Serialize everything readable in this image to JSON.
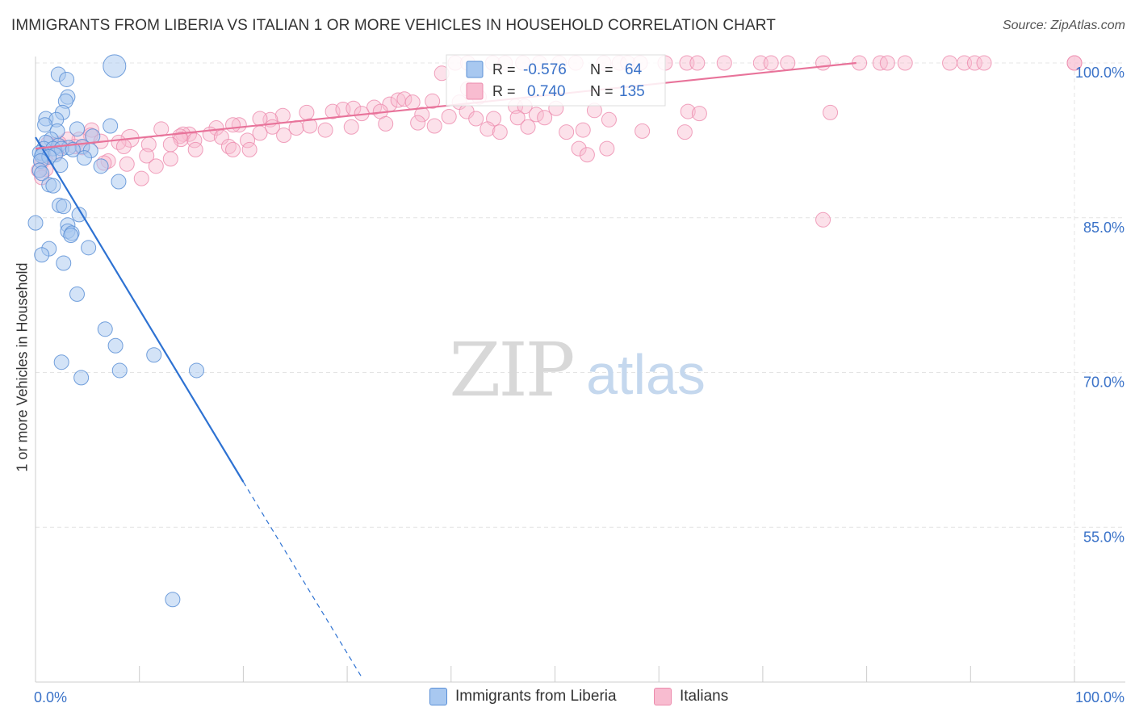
{
  "title": "IMMIGRANTS FROM LIBERIA VS ITALIAN 1 OR MORE VEHICLES IN HOUSEHOLD CORRELATION CHART",
  "source": "Source: ZipAtlas.com",
  "watermark": {
    "zip": "ZIP",
    "atlas": "atlas"
  },
  "colors": {
    "blue_fill": "#a8c8f0",
    "blue_stroke": "#5a8fd6",
    "blue_line": "#2e72d2",
    "pink_fill": "#f8bcd0",
    "pink_stroke": "#ec8aac",
    "pink_line": "#e8739a",
    "axis_text": "#3a72c8",
    "grid": "#e4e4e4"
  },
  "stats": {
    "r_label": "R =",
    "n_label": "N =",
    "rows": [
      {
        "series": "blue",
        "r": "-0.576",
        "n": "64"
      },
      {
        "series": "pink",
        "r": "0.740",
        "n": "135"
      }
    ]
  },
  "legend": [
    {
      "series": "blue",
      "label": "Immigrants from Liberia"
    },
    {
      "series": "pink",
      "label": "Italians"
    }
  ],
  "chart_data": {
    "type": "scatter",
    "title": "IMMIGRANTS FROM LIBERIA VS ITALIAN 1 OR MORE VEHICLES IN HOUSEHOLD CORRELATION CHART",
    "xlabel": "",
    "ylabel": "1 or more Vehicles in Household",
    "xlim": [
      0,
      100
    ],
    "ylim": [
      40,
      100
    ],
    "x_tick_labels": [
      "0.0%",
      "100.0%"
    ],
    "y_ticks": [
      {
        "value": 100,
        "label": "100.0%"
      },
      {
        "value": 85,
        "label": "85.0%"
      },
      {
        "value": 70,
        "label": "70.0%"
      },
      {
        "value": 55,
        "label": "55.0%"
      }
    ],
    "grid": true,
    "legend_position": "bottom",
    "series": [
      {
        "name": "Immigrants from Liberia",
        "color": "blue",
        "trend": {
          "x0": 0,
          "y0": 92.8,
          "x1": 20,
          "y1": 59.4,
          "dash_to_x": 31.5,
          "dash_to_y": 40.3
        },
        "points": [
          [
            7.6,
            99.7
          ],
          [
            2.2,
            98.9
          ],
          [
            3.0,
            98.4
          ],
          [
            3.1,
            96.7
          ],
          [
            2.9,
            96.3
          ],
          [
            2.6,
            95.2
          ],
          [
            1.0,
            94.6
          ],
          [
            2.0,
            94.5
          ],
          [
            0.9,
            94.0
          ],
          [
            7.2,
            93.9
          ],
          [
            4.0,
            93.6
          ],
          [
            2.1,
            93.4
          ],
          [
            5.5,
            92.9
          ],
          [
            1.5,
            92.6
          ],
          [
            1.0,
            92.3
          ],
          [
            2.2,
            92.0
          ],
          [
            4.5,
            91.9
          ],
          [
            3.2,
            91.8
          ],
          [
            0.8,
            91.7
          ],
          [
            1.7,
            91.7
          ],
          [
            2.5,
            91.7
          ],
          [
            3.6,
            91.6
          ],
          [
            5.3,
            91.5
          ],
          [
            0.4,
            91.3
          ],
          [
            0.7,
            91.2
          ],
          [
            1.9,
            91.1
          ],
          [
            0.6,
            91.0
          ],
          [
            1.3,
            90.9
          ],
          [
            4.7,
            90.8
          ],
          [
            0.5,
            90.5
          ],
          [
            2.4,
            90.1
          ],
          [
            6.3,
            90.0
          ],
          [
            0.4,
            89.6
          ],
          [
            0.6,
            89.3
          ],
          [
            8.0,
            88.5
          ],
          [
            1.3,
            88.2
          ],
          [
            1.7,
            88.1
          ],
          [
            2.3,
            86.2
          ],
          [
            2.7,
            86.1
          ],
          [
            4.2,
            85.3
          ],
          [
            0.0,
            84.5
          ],
          [
            3.1,
            84.3
          ],
          [
            3.1,
            83.7
          ],
          [
            3.5,
            83.5
          ],
          [
            3.4,
            83.3
          ],
          [
            5.1,
            82.1
          ],
          [
            1.3,
            82.0
          ],
          [
            0.6,
            81.4
          ],
          [
            2.7,
            80.6
          ],
          [
            4.0,
            77.6
          ],
          [
            6.7,
            74.2
          ],
          [
            7.7,
            72.6
          ],
          [
            11.4,
            71.7
          ],
          [
            2.5,
            71.0
          ],
          [
            8.1,
            70.2
          ],
          [
            15.5,
            70.2
          ],
          [
            4.4,
            69.5
          ],
          [
            13.2,
            48.0
          ]
        ],
        "sizes": {
          "0": 28
        }
      },
      {
        "name": "Italians",
        "color": "pink",
        "trend": {
          "x0": 0,
          "y0": 91.7,
          "x1": 79,
          "y1": 100.0
        },
        "points": [
          [
            40.4,
            100.0
          ],
          [
            41.6,
            100.0
          ],
          [
            44.0,
            100.0
          ],
          [
            45.2,
            100.0
          ],
          [
            46.9,
            100.0
          ],
          [
            48.5,
            100.0
          ],
          [
            50.4,
            100.0
          ],
          [
            52.0,
            100.0
          ],
          [
            54.7,
            100.0
          ],
          [
            56.2,
            100.0
          ],
          [
            57.0,
            100.0
          ],
          [
            58.2,
            100.0
          ],
          [
            60.6,
            100.0
          ],
          [
            62.7,
            100.0
          ],
          [
            63.7,
            100.0
          ],
          [
            66.3,
            100.0
          ],
          [
            69.8,
            100.0
          ],
          [
            70.8,
            100.0
          ],
          [
            72.4,
            100.0
          ],
          [
            75.8,
            100.0
          ],
          [
            79.3,
            100.0
          ],
          [
            81.3,
            100.0
          ],
          [
            82.0,
            100.0
          ],
          [
            83.7,
            100.0
          ],
          [
            88.0,
            100.0
          ],
          [
            89.4,
            100.0
          ],
          [
            90.4,
            100.0
          ],
          [
            91.3,
            100.0
          ],
          [
            100.0,
            100.0
          ],
          [
            100.0,
            100.0
          ],
          [
            39.1,
            99.0
          ],
          [
            41.6,
            97.5
          ],
          [
            38.2,
            96.3
          ],
          [
            40.8,
            96.2
          ],
          [
            34.1,
            96.0
          ],
          [
            34.9,
            96.4
          ],
          [
            35.5,
            96.5
          ],
          [
            42.7,
            96.7
          ],
          [
            36.3,
            96.2
          ],
          [
            32.6,
            95.7
          ],
          [
            37.2,
            95.0
          ],
          [
            41.5,
            95.3
          ],
          [
            46.2,
            95.8
          ],
          [
            47.1,
            95.8
          ],
          [
            50.1,
            95.6
          ],
          [
            53.8,
            95.4
          ],
          [
            48.2,
            95.0
          ],
          [
            33.2,
            95.3
          ],
          [
            28.6,
            95.3
          ],
          [
            29.6,
            95.5
          ],
          [
            30.6,
            95.6
          ],
          [
            31.4,
            95.1
          ],
          [
            26.1,
            95.2
          ],
          [
            23.8,
            94.9
          ],
          [
            22.6,
            94.5
          ],
          [
            21.6,
            94.6
          ],
          [
            33.7,
            94.1
          ],
          [
            36.8,
            94.2
          ],
          [
            39.8,
            94.8
          ],
          [
            42.4,
            94.6
          ],
          [
            44.1,
            94.6
          ],
          [
            46.4,
            94.7
          ],
          [
            49.0,
            94.7
          ],
          [
            55.2,
            94.5
          ],
          [
            62.8,
            95.3
          ],
          [
            63.9,
            95.1
          ],
          [
            76.5,
            95.2
          ],
          [
            19.6,
            94.0
          ],
          [
            19.0,
            94.0
          ],
          [
            17.4,
            93.7
          ],
          [
            22.8,
            93.8
          ],
          [
            25.1,
            93.7
          ],
          [
            26.4,
            93.9
          ],
          [
            27.9,
            93.5
          ],
          [
            30.4,
            93.8
          ],
          [
            38.4,
            93.9
          ],
          [
            43.5,
            93.6
          ],
          [
            47.4,
            93.8
          ],
          [
            44.7,
            93.3
          ],
          [
            51.1,
            93.3
          ],
          [
            52.7,
            93.5
          ],
          [
            58.4,
            93.4
          ],
          [
            62.5,
            93.3
          ],
          [
            12.1,
            93.6
          ],
          [
            14.8,
            93.1
          ],
          [
            14.2,
            93.1
          ],
          [
            16.8,
            93.1
          ],
          [
            13.9,
            92.9
          ],
          [
            17.9,
            92.8
          ],
          [
            21.6,
            93.2
          ],
          [
            23.9,
            93.0
          ],
          [
            14.0,
            92.6
          ],
          [
            15.3,
            92.5
          ],
          [
            20.4,
            92.5
          ],
          [
            9.1,
            92.7
          ],
          [
            5.4,
            93.5
          ],
          [
            5.3,
            93.0
          ],
          [
            4.2,
            92.6
          ],
          [
            3.1,
            92.6
          ],
          [
            2.3,
            92.2
          ],
          [
            1.2,
            92.2
          ],
          [
            2.4,
            91.9
          ],
          [
            3.8,
            91.9
          ],
          [
            4.5,
            91.8
          ],
          [
            6.3,
            92.4
          ],
          [
            8.0,
            92.3
          ],
          [
            8.5,
            91.9
          ],
          [
            10.9,
            92.1
          ],
          [
            13.0,
            92.1
          ],
          [
            15.4,
            91.6
          ],
          [
            18.6,
            91.9
          ],
          [
            20.6,
            91.6
          ],
          [
            19.0,
            91.6
          ],
          [
            52.3,
            91.7
          ],
          [
            55.0,
            91.7
          ],
          [
            53.1,
            91.1
          ],
          [
            2.0,
            91.3
          ],
          [
            0.9,
            90.8
          ],
          [
            10.7,
            91.0
          ],
          [
            13.0,
            90.7
          ],
          [
            7.0,
            90.5
          ],
          [
            6.6,
            90.3
          ],
          [
            8.8,
            90.2
          ],
          [
            11.6,
            90.0
          ],
          [
            0.6,
            90.4
          ],
          [
            1.0,
            89.7
          ],
          [
            0.3,
            89.6
          ],
          [
            0.6,
            88.9
          ],
          [
            10.2,
            88.8
          ],
          [
            75.8,
            84.8
          ]
        ],
        "sizes": {
          "94": 22
        }
      }
    ]
  }
}
